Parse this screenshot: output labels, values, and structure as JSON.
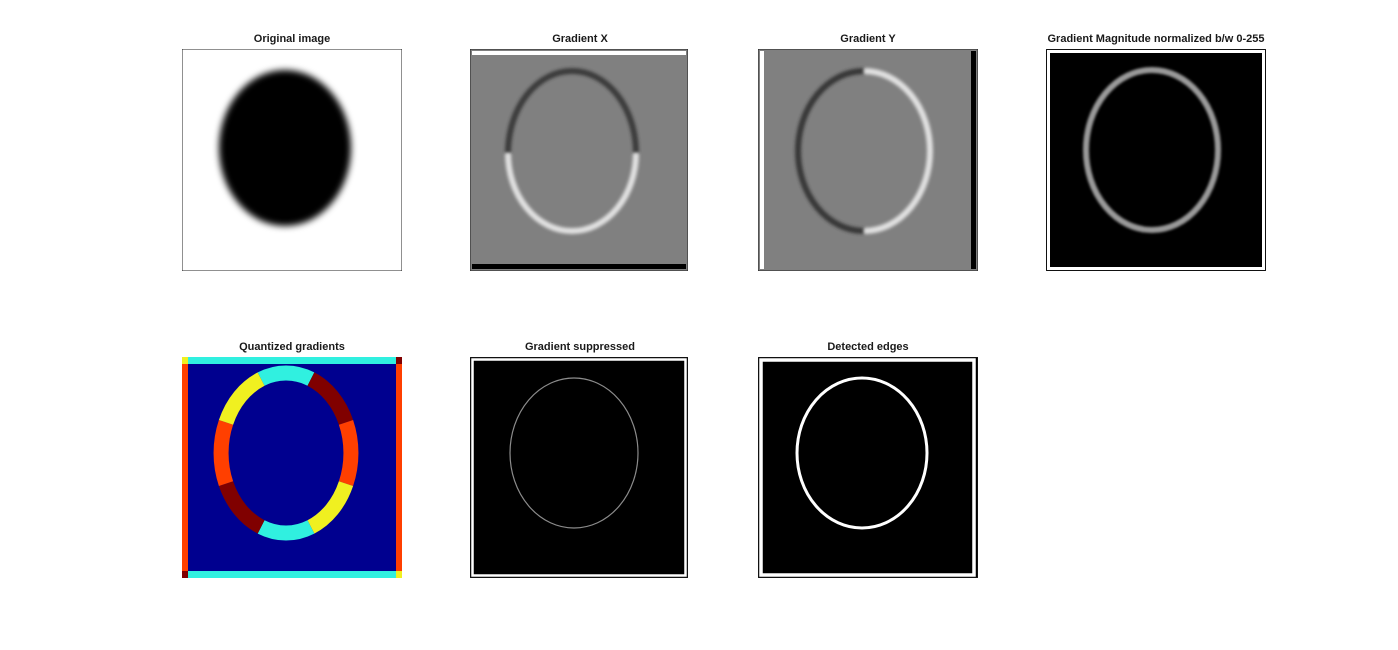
{
  "figure": {
    "panels": [
      {
        "title": "Original image"
      },
      {
        "title": "Gradient X"
      },
      {
        "title": "Gradient Y"
      },
      {
        "title": "Gradient Magnitude normalized b/w 0-255"
      },
      {
        "title": "Quantized gradients"
      },
      {
        "title": "Gradient suppressed"
      },
      {
        "title": "Detected edges"
      }
    ]
  },
  "colors": {
    "background": "#ffffff",
    "gray_mid": "#808080",
    "jet_dark_blue": "#00008f",
    "jet_cyan": "#30f0e0",
    "jet_yellow": "#f0f020",
    "jet_orange_red": "#ff3f00",
    "jet_dark_red": "#800000"
  }
}
